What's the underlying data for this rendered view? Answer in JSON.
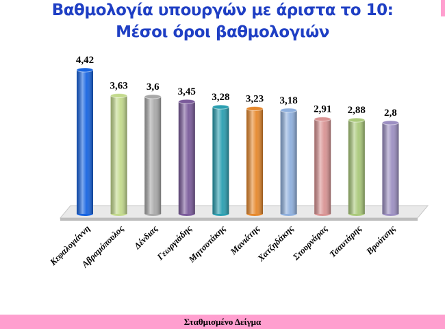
{
  "chart_data": {
    "type": "bar",
    "title": [
      "Βαθμολογία υπουργών με άριστα το 10:",
      "Μέσοι όροι βαθμολογιών"
    ],
    "categories": [
      "Κεφαλογιάννη",
      "Αβραμόπουλος",
      "Δένδιας",
      "Γεωργιάδης",
      "Μητσοτάκης",
      "Μανιάτης",
      "Χατζηδάκης",
      "Στουρνάρας",
      "Τσαυτάρης",
      "Βρούτσης"
    ],
    "values": [
      4.42,
      3.63,
      3.6,
      3.45,
      3.28,
      3.23,
      3.18,
      2.91,
      2.88,
      2.8
    ],
    "value_labels": [
      "4,42",
      "3,63",
      "3,6",
      "3,45",
      "3,28",
      "3,23",
      "3,18",
      "2,91",
      "2,88",
      "2,8"
    ],
    "colors": [
      "#1663e0",
      "#c3da8c",
      "#a9a9a9",
      "#7b5b9b",
      "#2a9fb1",
      "#e6882c",
      "#8fb0de",
      "#d99393",
      "#aac97a",
      "#9c8fc2"
    ],
    "note": "Σταθμισμένο Δείγμα"
  }
}
